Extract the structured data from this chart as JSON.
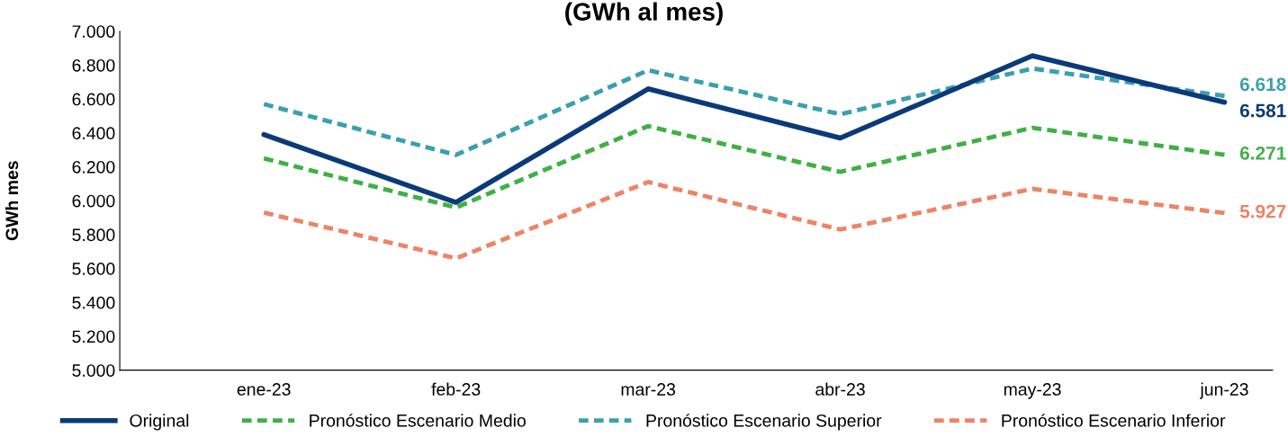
{
  "chart_data": {
    "type": "line",
    "title": "(GWh al mes)",
    "ylabel": "GWh mes",
    "categories": [
      "ene-23",
      "feb-23",
      "mar-23",
      "abr-23",
      "may-23",
      "jun-23"
    ],
    "series": [
      {
        "name": "Original",
        "color": "#0b3a78",
        "line_style": "solid",
        "values": [
          6390,
          5990,
          6660,
          6370,
          6855,
          6581
        ],
        "value_labels": [
          null,
          null,
          null,
          null,
          null,
          "6.581"
        ]
      },
      {
        "name": "Pronóstico Escenario Medio",
        "color": "#3fb045",
        "line_style": "dashed",
        "values": [
          6250,
          5960,
          6440,
          6170,
          6430,
          6271
        ],
        "value_labels": [
          null,
          null,
          null,
          null,
          null,
          "6.271"
        ]
      },
      {
        "name": "Pronóstico Escenario Superior",
        "color": "#3a9fb0",
        "line_style": "dashed",
        "values": [
          6570,
          6270,
          6770,
          6510,
          6780,
          6618
        ],
        "value_labels": [
          null,
          null,
          null,
          null,
          null,
          "6.618"
        ]
      },
      {
        "name": "Pronóstico Escenario Inferior",
        "color": "#ec8466",
        "line_style": "dashed",
        "values": [
          5930,
          5660,
          6110,
          5830,
          6070,
          5927
        ],
        "value_labels": [
          null,
          null,
          null,
          null,
          null,
          "5.927"
        ]
      }
    ],
    "ylim": [
      5000,
      7000
    ],
    "yticks": [
      {
        "value": 5000,
        "label": "5.000"
      },
      {
        "value": 5200,
        "label": "5.200"
      },
      {
        "value": 5400,
        "label": "5.400"
      },
      {
        "value": 5600,
        "label": "5.600"
      },
      {
        "value": 5800,
        "label": "5.800"
      },
      {
        "value": 6000,
        "label": "6.000"
      },
      {
        "value": 6200,
        "label": "6.200"
      },
      {
        "value": 6400,
        "label": "6.400"
      },
      {
        "value": 6600,
        "label": "6.600"
      },
      {
        "value": 6800,
        "label": "6.800"
      },
      {
        "value": 7000,
        "label": "7.000"
      }
    ],
    "grid": false,
    "legend": "bottom",
    "marker": "none"
  }
}
